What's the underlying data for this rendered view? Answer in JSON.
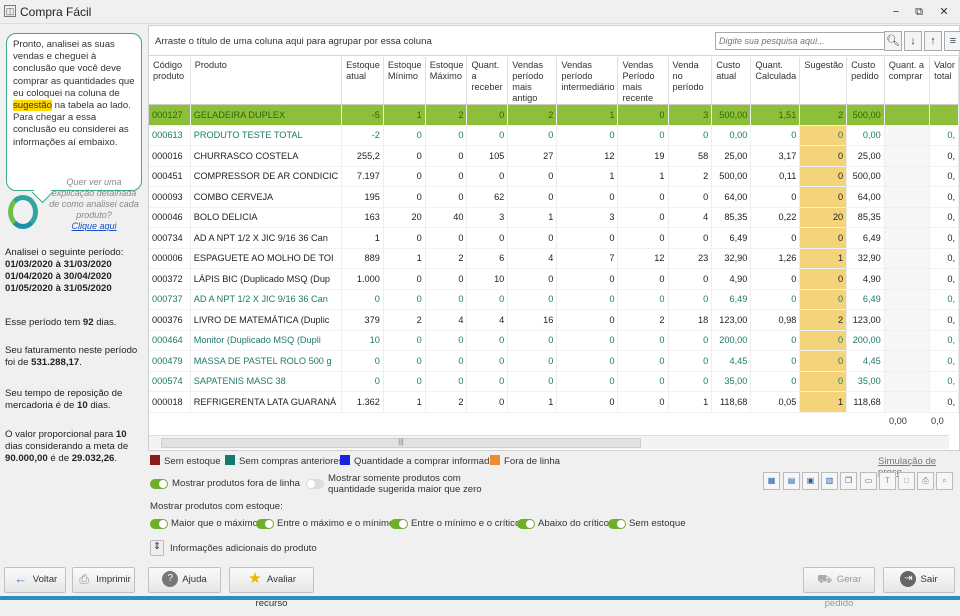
{
  "window": {
    "title": "Compra Fácil",
    "app_icon": "◫",
    "min": "−",
    "restore": "⧉",
    "close": "✕"
  },
  "assistant": {
    "part1": "Pronto, analisei as suas vendas e cheguei à conclusão que você deve comprar as quantidades que eu coloquei na coluna de ",
    "highlight": "sugestão",
    "part2": " na tabela ao lado. Para chegar a essa conclusão eu considerei as informações aí embaixo.",
    "detail_question": "Quer ver uma explicação detalhada de como analisei cada produto?",
    "detail_link": "Clique aqui",
    "period_label": "Analisei o seguinte período:",
    "periods": [
      "01/03/2020 à 31/03/2020",
      "01/04/2020 à 30/04/2020",
      "01/05/2020 à 31/05/2020"
    ],
    "days_pre": "Esse período tem ",
    "days_value": "92",
    "days_post": " dias.",
    "revenue_pre": "Seu faturamento neste período foi de ",
    "revenue_value": "531.288,17",
    "revenue_post": ".",
    "restock_pre": "Seu tempo de reposição de mercadoria é de ",
    "restock_value": "10",
    "restock_post": " dias.",
    "prop_pre": "O valor proporcional para ",
    "prop_days": "10",
    "prop_mid": " dias considerando a meta de ",
    "prop_goal": "90.000,00",
    "prop_mid2": " é de ",
    "prop_value": "29.032,26",
    "prop_post": "."
  },
  "grid": {
    "group_hint": "Arraste o título de uma coluna aqui para agrupar por essa coluna",
    "search_placeholder": "Digite sua pesquisa aqui...",
    "columns": [
      "Código produto",
      "Produto",
      "Estoque atual",
      "Estoque Mínimo",
      "Estoque Máximo",
      "Quant. a receber",
      "Vendas período mais antigo",
      "Vendas período intermediário",
      "Vendas Período mais recente",
      "Venda no período",
      "Custo atual",
      "Quant. Calculada",
      "Sugestão",
      "Custo pedido",
      "Quant. a comprar",
      "Valor total"
    ],
    "rows": [
      {
        "style": "sel",
        "c": [
          "000127",
          "GELADEIRA DUPLEX",
          "-5",
          "1",
          "2",
          "0",
          "2",
          "1",
          "0",
          "3",
          "500,00",
          "1,51",
          "2",
          "500,00",
          "",
          ""
        ]
      },
      {
        "style": "green",
        "c": [
          "000613",
          "PRODUTO TESTE TOTAL",
          "-2",
          "0",
          "0",
          "0",
          "0",
          "0",
          "0",
          "0",
          "0,00",
          "0",
          "0",
          "0,00",
          "",
          "0,"
        ]
      },
      {
        "style": "",
        "c": [
          "000016",
          "CHURRASCO COSTELA",
          "255,2",
          "0",
          "0",
          "105",
          "27",
          "12",
          "19",
          "58",
          "25,00",
          "3,17",
          "0",
          "25,00",
          "",
          "0,"
        ]
      },
      {
        "style": "",
        "c": [
          "000451",
          "COMPRESSOR DE AR CONDICIC",
          "7.197",
          "0",
          "0",
          "0",
          "0",
          "1",
          "1",
          "2",
          "500,00",
          "0,11",
          "0",
          "500,00",
          "",
          "0,"
        ]
      },
      {
        "style": "",
        "c": [
          "000093",
          "COMBO CERVEJA",
          "195",
          "0",
          "0",
          "62",
          "0",
          "0",
          "0",
          "0",
          "64,00",
          "0",
          "0",
          "64,00",
          "",
          "0,"
        ]
      },
      {
        "style": "",
        "c": [
          "000046",
          "BOLO DELICIA",
          "163",
          "20",
          "40",
          "3",
          "1",
          "3",
          "0",
          "4",
          "85,35",
          "0,22",
          "20",
          "85,35",
          "",
          "0,"
        ]
      },
      {
        "style": "",
        "c": [
          "000734",
          "AD A NPT 1/2 X JIC 9/16 36 Can",
          "1",
          "0",
          "0",
          "0",
          "0",
          "0",
          "0",
          "0",
          "6,49",
          "0",
          "0",
          "6,49",
          "",
          "0,"
        ]
      },
      {
        "style": "",
        "c": [
          "000006",
          "ESPAGUETE AO MOLHO DE TOI",
          "889",
          "1",
          "2",
          "6",
          "4",
          "7",
          "12",
          "23",
          "32,90",
          "1,26",
          "1",
          "32,90",
          "",
          "0,"
        ]
      },
      {
        "style": "",
        "c": [
          "000372",
          "LÁPIS BIC (Duplicado MSQ (Dup",
          "1.000",
          "0",
          "0",
          "10",
          "0",
          "0",
          "0",
          "0",
          "4,90",
          "0",
          "0",
          "4,90",
          "",
          "0,"
        ]
      },
      {
        "style": "green",
        "c": [
          "000737",
          "AD A NPT 1/2 X JIC 9/16 36 Can",
          "0",
          "0",
          "0",
          "0",
          "0",
          "0",
          "0",
          "0",
          "6,49",
          "0",
          "0",
          "6,49",
          "",
          "0,"
        ]
      },
      {
        "style": "",
        "c": [
          "000376",
          "LIVRO DE MATEMÁTICA (Duplic",
          "379",
          "2",
          "4",
          "4",
          "16",
          "0",
          "2",
          "18",
          "123,00",
          "0,98",
          "2",
          "123,00",
          "",
          "0,"
        ]
      },
      {
        "style": "green",
        "c": [
          "000464",
          "Monitor (Duplicado MSQ (Dupli",
          "10",
          "0",
          "0",
          "0",
          "0",
          "0",
          "0",
          "0",
          "200,00",
          "0",
          "0",
          "200,00",
          "",
          "0,"
        ]
      },
      {
        "style": "green",
        "c": [
          "000479",
          "MASSA DE PASTEL ROLO 500 g",
          "0",
          "0",
          "0",
          "0",
          "0",
          "0",
          "0",
          "0",
          "4,45",
          "0",
          "0",
          "4,45",
          "",
          "0,"
        ]
      },
      {
        "style": "green",
        "c": [
          "000574",
          "SAPATENIS MASC 38",
          "0",
          "0",
          "0",
          "0",
          "0",
          "0",
          "0",
          "0",
          "35,00",
          "0",
          "0",
          "35,00",
          "",
          "0,"
        ]
      },
      {
        "style": "",
        "c": [
          "000018",
          "REFRIGERENTA LATA GUARANÁ",
          "1.362",
          "1",
          "2",
          "0",
          "1",
          "0",
          "0",
          "1",
          "118,68",
          "0,05",
          "1",
          "118,68",
          "",
          "0,"
        ]
      }
    ],
    "total_qty": "0,00",
    "total_value": "0,0"
  },
  "legend": [
    {
      "label": "Sem estoque",
      "color": "#8b1a1a"
    },
    {
      "label": "Sem compras anteriores",
      "color": "#137a6e"
    },
    {
      "label": "Quantidade a comprar informada",
      "color": "#1a22e0"
    },
    {
      "label": "Fora de linha",
      "color": "#f08a30"
    }
  ],
  "price_sim": "Simulação de preço",
  "toggles": {
    "out_of_line": "Mostrar produtos fora de linha",
    "suggested_only": "Mostrar somente produtos com quantidade sugerida maior que zero",
    "stock_header": "Mostrar produtos com estoque:",
    "stock_filters": [
      "Maior que o máximo",
      "Entre o máximo e o mínimo",
      "Entre o mínimo e o crítico",
      "Abaixo do crítico",
      "Sem estoque"
    ],
    "additional_info": "Informações adicionais do produto"
  },
  "buttons": {
    "back": "Voltar",
    "print": "Imprimir",
    "help": "Ajuda",
    "rate": "Avaliar recurso",
    "generate": "Gerar pedido",
    "exit": "Sair"
  }
}
